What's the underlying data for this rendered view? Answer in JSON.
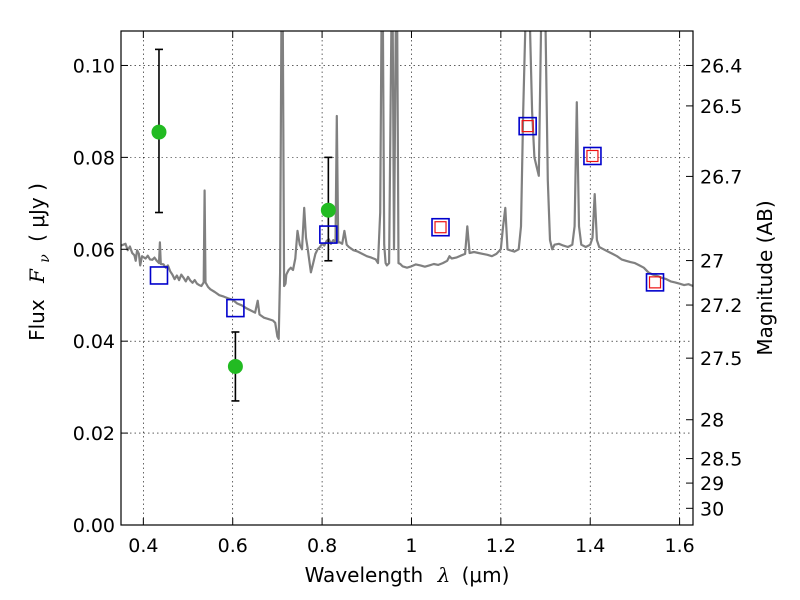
{
  "chart_data": {
    "type": "scatter",
    "title": "",
    "xlabel_text": "Wavelength",
    "xlabel_symbol": "λ",
    "xlabel_unit": "(μm)",
    "ylabel_text": "Flux",
    "ylabel_symbol": "F",
    "ylabel_sub": "ν",
    "ylabel_unit": "( μJy )",
    "y2label": "Magnitude (AB)",
    "xlim": [
      0.35,
      1.63
    ],
    "ylim": [
      0.0,
      0.1075
    ],
    "x_ticks": [
      {
        "v": 0.4,
        "label": "0.4"
      },
      {
        "v": 0.6,
        "label": "0.6"
      },
      {
        "v": 0.8,
        "label": "0.8"
      },
      {
        "v": 1.0,
        "label": "1"
      },
      {
        "v": 1.2,
        "label": "1.2"
      },
      {
        "v": 1.4,
        "label": "1.4"
      },
      {
        "v": 1.6,
        "label": "1.6"
      }
    ],
    "y_ticks": [
      {
        "v": 0.0,
        "label": "0.00"
      },
      {
        "v": 0.02,
        "label": "0.02"
      },
      {
        "v": 0.04,
        "label": "0.04"
      },
      {
        "v": 0.06,
        "label": "0.06"
      },
      {
        "v": 0.08,
        "label": "0.08"
      },
      {
        "v": 0.1,
        "label": "0.10"
      }
    ],
    "mag_ticks": [
      {
        "v": 26.4,
        "label": "26.4"
      },
      {
        "v": 26.5,
        "label": "26.5"
      },
      {
        "v": 26.7,
        "label": "26.7"
      },
      {
        "v": 27.0,
        "label": "27"
      },
      {
        "v": 27.2,
        "label": "27.2"
      },
      {
        "v": 27.5,
        "label": "27.5"
      },
      {
        "v": 28.0,
        "label": "28"
      },
      {
        "v": 28.5,
        "label": "28.5"
      },
      {
        "v": 29.0,
        "label": "29"
      },
      {
        "v": 30.0,
        "label": "30"
      }
    ],
    "grid": true,
    "colors": {
      "spectrum": "#808080",
      "observed": "#22bb22",
      "model_box": "#0000cc",
      "model_inner": "#ee1111",
      "errorbar": "#000000"
    },
    "spectrum": [
      [
        0.35,
        0.0608
      ],
      [
        0.36,
        0.0612
      ],
      [
        0.365,
        0.0598
      ],
      [
        0.37,
        0.0606
      ],
      [
        0.375,
        0.0592
      ],
      [
        0.38,
        0.0587
      ],
      [
        0.383,
        0.0575
      ],
      [
        0.386,
        0.0598
      ],
      [
        0.39,
        0.059
      ],
      [
        0.393,
        0.0565
      ],
      [
        0.397,
        0.0585
      ],
      [
        0.4,
        0.0583
      ],
      [
        0.405,
        0.058
      ],
      [
        0.41,
        0.0586
      ],
      [
        0.415,
        0.0578
      ],
      [
        0.42,
        0.0577
      ],
      [
        0.425,
        0.0582
      ],
      [
        0.43,
        0.0575
      ],
      [
        0.435,
        0.057
      ],
      [
        0.437,
        0.0615
      ],
      [
        0.439,
        0.0568
      ],
      [
        0.445,
        0.0567
      ],
      [
        0.45,
        0.056
      ],
      [
        0.455,
        0.0565
      ],
      [
        0.46,
        0.0552
      ],
      [
        0.465,
        0.0545
      ],
      [
        0.47,
        0.0535
      ],
      [
        0.475,
        0.0543
      ],
      [
        0.48,
        0.0533
      ],
      [
        0.485,
        0.0545
      ],
      [
        0.49,
        0.0538
      ],
      [
        0.495,
        0.053
      ],
      [
        0.5,
        0.054
      ],
      [
        0.505,
        0.0532
      ],
      [
        0.51,
        0.0527
      ],
      [
        0.515,
        0.0533
      ],
      [
        0.52,
        0.0525
      ],
      [
        0.525,
        0.0522
      ],
      [
        0.53,
        0.052
      ],
      [
        0.535,
        0.0528
      ],
      [
        0.537,
        0.0728
      ],
      [
        0.539,
        0.0528
      ],
      [
        0.545,
        0.0518
      ],
      [
        0.55,
        0.0513
      ],
      [
        0.56,
        0.0507
      ],
      [
        0.57,
        0.05
      ],
      [
        0.58,
        0.0497
      ],
      [
        0.59,
        0.0493
      ],
      [
        0.6,
        0.049
      ],
      [
        0.61,
        0.0482
      ],
      [
        0.62,
        0.0478
      ],
      [
        0.63,
        0.0472
      ],
      [
        0.64,
        0.0467
      ],
      [
        0.65,
        0.0462
      ],
      [
        0.656,
        0.0488
      ],
      [
        0.66,
        0.0458
      ],
      [
        0.67,
        0.0451
      ],
      [
        0.68,
        0.0448
      ],
      [
        0.69,
        0.0445
      ],
      [
        0.695,
        0.044
      ],
      [
        0.7,
        0.041
      ],
      [
        0.703,
        0.0405
      ],
      [
        0.706,
        0.055
      ],
      [
        0.709,
        0.109
      ],
      [
        0.712,
        0.109
      ],
      [
        0.715,
        0.052
      ],
      [
        0.718,
        0.0525
      ],
      [
        0.72,
        0.0545
      ],
      [
        0.725,
        0.0555
      ],
      [
        0.73,
        0.056
      ],
      [
        0.735,
        0.0555
      ],
      [
        0.74,
        0.058
      ],
      [
        0.745,
        0.064
      ],
      [
        0.75,
        0.061
      ],
      [
        0.755,
        0.06
      ],
      [
        0.76,
        0.069
      ],
      [
        0.764,
        0.0625
      ],
      [
        0.768,
        0.06
      ],
      [
        0.77,
        0.0585
      ],
      [
        0.775,
        0.055
      ],
      [
        0.78,
        0.057
      ],
      [
        0.785,
        0.059
      ],
      [
        0.79,
        0.06
      ],
      [
        0.795,
        0.0605
      ],
      [
        0.8,
        0.0612
      ],
      [
        0.805,
        0.0608
      ],
      [
        0.81,
        0.0618
      ],
      [
        0.815,
        0.0622
      ],
      [
        0.82,
        0.0612
      ],
      [
        0.825,
        0.062
      ],
      [
        0.83,
        0.0615
      ],
      [
        0.833,
        0.089
      ],
      [
        0.836,
        0.0615
      ],
      [
        0.84,
        0.0615
      ],
      [
        0.845,
        0.0612
      ],
      [
        0.85,
        0.064
      ],
      [
        0.855,
        0.061
      ],
      [
        0.86,
        0.0605
      ],
      [
        0.87,
        0.0598
      ],
      [
        0.88,
        0.0595
      ],
      [
        0.89,
        0.059
      ],
      [
        0.9,
        0.0585
      ],
      [
        0.91,
        0.0582
      ],
      [
        0.92,
        0.0578
      ],
      [
        0.925,
        0.057
      ],
      [
        0.93,
        0.068
      ],
      [
        0.933,
        0.109
      ],
      [
        0.936,
        0.109
      ],
      [
        0.939,
        0.061
      ],
      [
        0.942,
        0.057
      ],
      [
        0.945,
        0.0565
      ],
      [
        0.95,
        0.057
      ],
      [
        0.955,
        0.109
      ],
      [
        0.958,
        0.109
      ],
      [
        0.961,
        0.06
      ],
      [
        0.965,
        0.109
      ],
      [
        0.968,
        0.109
      ],
      [
        0.971,
        0.057
      ],
      [
        0.975,
        0.0568
      ],
      [
        0.98,
        0.0563
      ],
      [
        0.99,
        0.056
      ],
      [
        1.0,
        0.0563
      ],
      [
        1.01,
        0.0567
      ],
      [
        1.02,
        0.0565
      ],
      [
        1.03,
        0.0562
      ],
      [
        1.04,
        0.0565
      ],
      [
        1.05,
        0.0568
      ],
      [
        1.06,
        0.0566
      ],
      [
        1.07,
        0.057
      ],
      [
        1.08,
        0.0575
      ],
      [
        1.085,
        0.0585
      ],
      [
        1.09,
        0.058
      ],
      [
        1.1,
        0.0582
      ],
      [
        1.11,
        0.0586
      ],
      [
        1.12,
        0.059
      ],
      [
        1.125,
        0.065
      ],
      [
        1.13,
        0.0592
      ],
      [
        1.14,
        0.0594
      ],
      [
        1.15,
        0.0592
      ],
      [
        1.16,
        0.059
      ],
      [
        1.17,
        0.0588
      ],
      [
        1.18,
        0.0585
      ],
      [
        1.19,
        0.059
      ],
      [
        1.2,
        0.06
      ],
      [
        1.205,
        0.065
      ],
      [
        1.21,
        0.069
      ],
      [
        1.215,
        0.06
      ],
      [
        1.22,
        0.0598
      ],
      [
        1.23,
        0.0595
      ],
      [
        1.24,
        0.06
      ],
      [
        1.245,
        0.065
      ],
      [
        1.25,
        0.09
      ],
      [
        1.255,
        0.109
      ],
      [
        1.265,
        0.109
      ],
      [
        1.27,
        0.09
      ],
      [
        1.275,
        0.08
      ],
      [
        1.28,
        0.078
      ],
      [
        1.285,
        0.076
      ],
      [
        1.29,
        0.109
      ],
      [
        1.3,
        0.109
      ],
      [
        1.305,
        0.075
      ],
      [
        1.31,
        0.062
      ],
      [
        1.315,
        0.06
      ],
      [
        1.32,
        0.061
      ],
      [
        1.33,
        0.0612
      ],
      [
        1.34,
        0.0608
      ],
      [
        1.35,
        0.0605
      ],
      [
        1.36,
        0.061
      ],
      [
        1.365,
        0.065
      ],
      [
        1.37,
        0.092
      ],
      [
        1.375,
        0.065
      ],
      [
        1.38,
        0.061
      ],
      [
        1.39,
        0.0605
      ],
      [
        1.4,
        0.061
      ],
      [
        1.405,
        0.0625
      ],
      [
        1.41,
        0.072
      ],
      [
        1.415,
        0.062
      ],
      [
        1.42,
        0.0605
      ],
      [
        1.43,
        0.06
      ],
      [
        1.44,
        0.0595
      ],
      [
        1.45,
        0.059
      ],
      [
        1.46,
        0.0585
      ],
      [
        1.47,
        0.0578
      ],
      [
        1.48,
        0.0575
      ],
      [
        1.49,
        0.0572
      ],
      [
        1.5,
        0.057
      ],
      [
        1.51,
        0.0565
      ],
      [
        1.52,
        0.056
      ],
      [
        1.53,
        0.055
      ],
      [
        1.54,
        0.0545
      ],
      [
        1.55,
        0.0542
      ],
      [
        1.56,
        0.0538
      ],
      [
        1.57,
        0.0535
      ],
      [
        1.58,
        0.053
      ],
      [
        1.59,
        0.0528
      ],
      [
        1.6,
        0.0525
      ],
      [
        1.61,
        0.0522
      ],
      [
        1.62,
        0.0524
      ],
      [
        1.63,
        0.052
      ]
    ],
    "observed": [
      {
        "x": 0.435,
        "y": 0.0855,
        "yerr_low": 0.068,
        "yerr_high": 0.1035
      },
      {
        "x": 0.606,
        "y": 0.0345,
        "yerr_low": 0.027,
        "yerr_high": 0.042
      },
      {
        "x": 0.814,
        "y": 0.0685,
        "yerr_low": 0.0575,
        "yerr_high": 0.08
      }
    ],
    "model_points": [
      {
        "x": 0.435,
        "y": 0.0543,
        "inner": false
      },
      {
        "x": 0.606,
        "y": 0.0472,
        "inner": false
      },
      {
        "x": 0.814,
        "y": 0.0632,
        "inner": false
      },
      {
        "x": 1.065,
        "y": 0.0648,
        "inner": true
      },
      {
        "x": 1.26,
        "y": 0.0868,
        "inner": true
      },
      {
        "x": 1.405,
        "y": 0.0803,
        "inner": true
      },
      {
        "x": 1.545,
        "y": 0.0528,
        "inner": true
      }
    ]
  }
}
